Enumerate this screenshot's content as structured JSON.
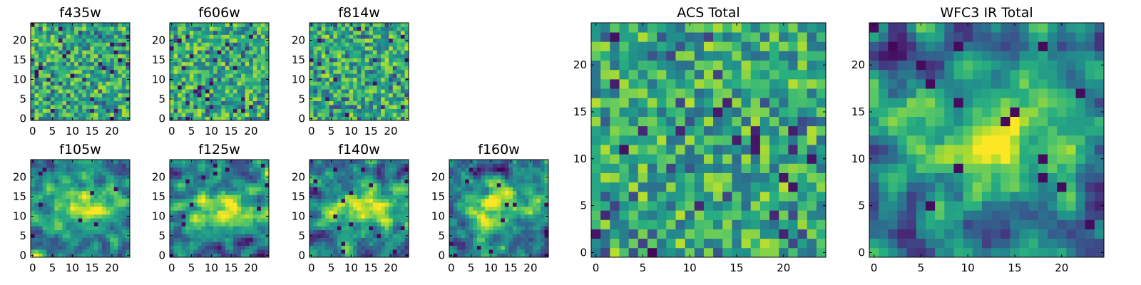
{
  "chart_data": [
    {
      "type": "heatmap",
      "title": "f435w",
      "xlim": [
        0,
        24
      ],
      "ylim": [
        0,
        24
      ],
      "xticks": [
        0,
        5,
        10,
        15,
        20
      ],
      "yticks": [
        0,
        5,
        10,
        15,
        20
      ],
      "colormap": "viridis",
      "pattern": "noise"
    },
    {
      "type": "heatmap",
      "title": "f606w",
      "xlim": [
        0,
        24
      ],
      "ylim": [
        0,
        24
      ],
      "xticks": [
        0,
        5,
        10,
        15,
        20
      ],
      "yticks": [
        0,
        5,
        10,
        15,
        20
      ],
      "colormap": "viridis",
      "pattern": "noise"
    },
    {
      "type": "heatmap",
      "title": "f814w",
      "xlim": [
        0,
        24
      ],
      "ylim": [
        0,
        24
      ],
      "xticks": [
        0,
        5,
        10,
        15,
        20
      ],
      "yticks": [
        0,
        5,
        10,
        15,
        20
      ],
      "colormap": "viridis",
      "pattern": "noise"
    },
    {
      "type": "heatmap",
      "title": "f105w",
      "xlim": [
        0,
        24
      ],
      "ylim": [
        0,
        24
      ],
      "xticks": [
        0,
        5,
        10,
        15,
        20
      ],
      "yticks": [
        0,
        5,
        10,
        15,
        20
      ],
      "colormap": "viridis",
      "pattern": "source"
    },
    {
      "type": "heatmap",
      "title": "f125w",
      "xlim": [
        0,
        24
      ],
      "ylim": [
        0,
        24
      ],
      "xticks": [
        0,
        5,
        10,
        15,
        20
      ],
      "yticks": [
        0,
        5,
        10,
        15,
        20
      ],
      "colormap": "viridis",
      "pattern": "source"
    },
    {
      "type": "heatmap",
      "title": "f140w",
      "xlim": [
        0,
        24
      ],
      "ylim": [
        0,
        24
      ],
      "xticks": [
        0,
        5,
        10,
        15,
        20
      ],
      "yticks": [
        0,
        5,
        10,
        15,
        20
      ],
      "colormap": "viridis",
      "pattern": "source"
    },
    {
      "type": "heatmap",
      "title": "f160w",
      "xlim": [
        0,
        24
      ],
      "ylim": [
        0,
        24
      ],
      "xticks": [
        0,
        5,
        10,
        15,
        20
      ],
      "yticks": [
        0,
        5,
        10,
        15,
        20
      ],
      "colormap": "viridis",
      "pattern": "source"
    },
    {
      "type": "heatmap",
      "title": "ACS Total",
      "xlim": [
        0,
        24
      ],
      "ylim": [
        0,
        24
      ],
      "xticks": [
        0,
        5,
        10,
        15,
        20
      ],
      "yticks": [
        0,
        5,
        10,
        15,
        20
      ],
      "colormap": "viridis",
      "pattern": "noise"
    },
    {
      "type": "heatmap",
      "title": "WFC3 IR Total",
      "xlim": [
        0,
        24
      ],
      "ylim": [
        0,
        24
      ],
      "xticks": [
        0,
        5,
        10,
        15,
        20
      ],
      "yticks": [
        0,
        5,
        10,
        15,
        20
      ],
      "colormap": "viridis",
      "pattern": "source"
    }
  ]
}
